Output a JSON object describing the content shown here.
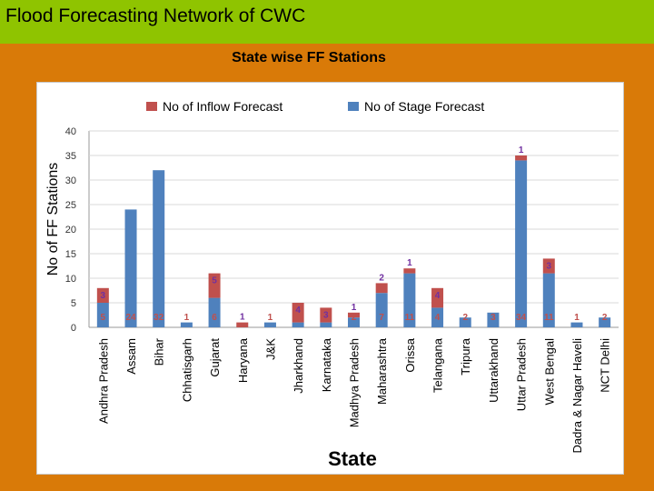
{
  "header": {
    "title": "Flood Forecasting Network of CWC",
    "subtitle": "State wise FF Stations"
  },
  "colors": {
    "inflow": "#c0504d",
    "stage": "#4f81bd",
    "inflow_label": "#7030a0",
    "stage_label": "#c0504d",
    "header_bg": "#8fc400",
    "page_bg": "#d97a08"
  },
  "chart_data": {
    "type": "bar",
    "stacked": true,
    "xlabel": "State",
    "ylabel": "No of FF Stations",
    "ylim": [
      0,
      40
    ],
    "yticks": [
      0,
      5,
      10,
      15,
      20,
      25,
      30,
      35,
      40
    ],
    "grid": true,
    "legend_position": "top",
    "categories": [
      "Andhra Pradesh",
      "Assam",
      "Bihar",
      "Chhatisgarh",
      "Gujarat",
      "Haryana",
      "J&K",
      "Jharkhand",
      "Karnataka",
      "Madhya Pradesh",
      "Maharashtra",
      "Orissa",
      "Telangana",
      "Tripura",
      "Uttarakhand",
      "Uttar Pradesh",
      "West Bengal",
      "Dadra & Nagar Haveli",
      "NCT Delhi"
    ],
    "series": [
      {
        "name": "No of Stage Forecast",
        "values": [
          5,
          24,
          32,
          1,
          6,
          0,
          1,
          1,
          1,
          2,
          7,
          11,
          4,
          2,
          3,
          34,
          11,
          1,
          2
        ]
      },
      {
        "name": "No of Inflow Forecast",
        "values": [
          3,
          0,
          0,
          0,
          5,
          1,
          0,
          4,
          3,
          1,
          2,
          1,
          4,
          0,
          0,
          1,
          3,
          0,
          0
        ]
      }
    ],
    "stage_labels": [
      "5",
      "24",
      "32",
      "1",
      "6",
      "",
      "1",
      "1",
      "1",
      "2",
      "7",
      "11",
      "4",
      "2",
      "3",
      "34",
      "11",
      "1",
      "2"
    ],
    "inflow_labels": [
      "3",
      "",
      "",
      "",
      "5",
      "1",
      "",
      "4",
      "3",
      "1",
      "2",
      "1",
      "4",
      "",
      "",
      "1",
      "3",
      "",
      ""
    ]
  }
}
